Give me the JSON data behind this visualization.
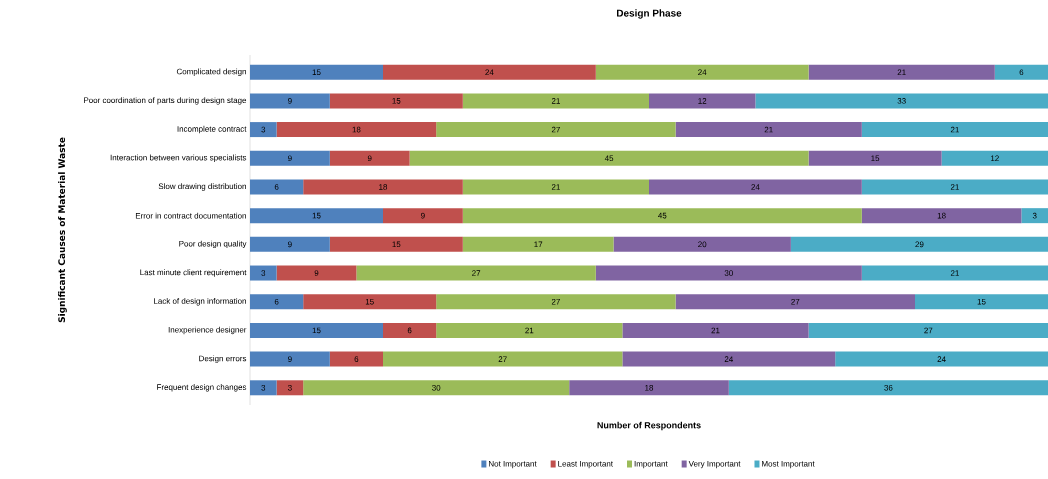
{
  "chart_data": {
    "type": "bar",
    "orientation": "horizontal",
    "stacked": true,
    "title": "Design Phase",
    "xlabel": "Number of Respondents",
    "ylabel": "Significant Causes of Material Waste",
    "categories": [
      "Complicated design",
      "Poor coordination of parts during design stage",
      "Incomplete contract",
      "Interaction between various specialists",
      "Slow drawing distribution",
      "Error in contract documentation",
      "Poor design quality",
      "Last minute client requirement",
      "Lack of design information",
      "Inexperience designer",
      "Design errors",
      "Frequent design changes"
    ],
    "series": [
      {
        "name": "Not Important",
        "color": "#4f81bd",
        "values": [
          15,
          9,
          3,
          9,
          6,
          15,
          9,
          3,
          6,
          15,
          9,
          3
        ]
      },
      {
        "name": "Least Important",
        "color": "#c0504d",
        "values": [
          24,
          15,
          18,
          9,
          18,
          9,
          15,
          9,
          15,
          6,
          6,
          3
        ]
      },
      {
        "name": "Important",
        "color": "#9bbb59",
        "values": [
          24,
          21,
          27,
          45,
          21,
          45,
          17,
          27,
          27,
          21,
          27,
          30
        ]
      },
      {
        "name": "Very Important",
        "color": "#8064a2",
        "values": [
          21,
          12,
          21,
          15,
          24,
          18,
          20,
          30,
          27,
          21,
          24,
          18
        ]
      },
      {
        "name": "Most Important",
        "color": "#4bacc6",
        "values": [
          6,
          33,
          21,
          12,
          21,
          3,
          29,
          21,
          15,
          27,
          24,
          36
        ]
      }
    ],
    "xlim": [
      0,
      90
    ],
    "data_labels": true,
    "legend": "bottom",
    "tick_labels": "y"
  }
}
